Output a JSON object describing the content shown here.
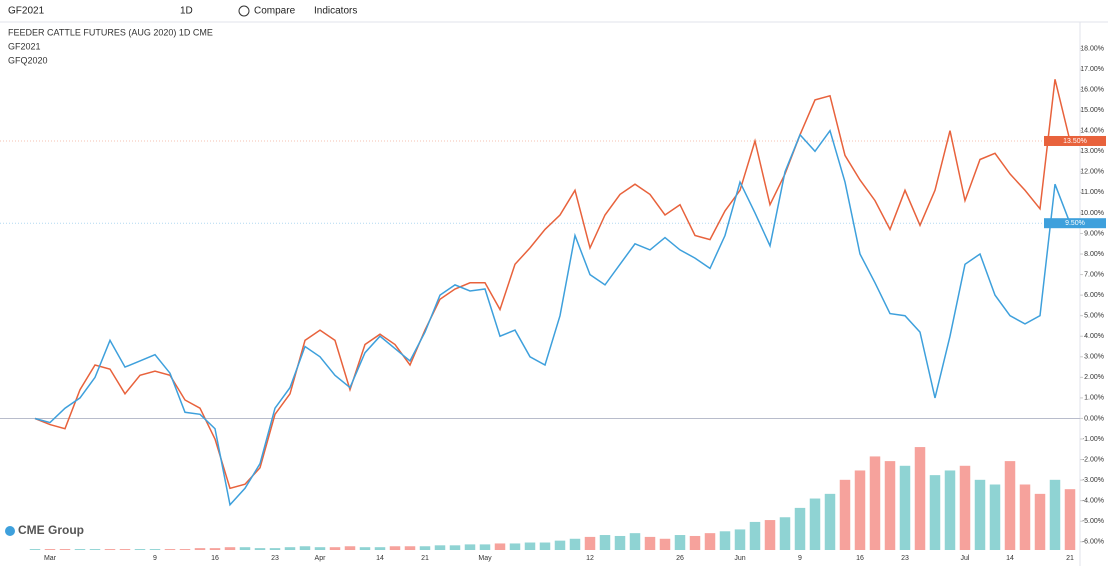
{
  "toolbar": {
    "symbol": "GF2021",
    "interval": "1D",
    "compare": "Compare",
    "indicators": "Indicators"
  },
  "chart_data": {
    "type": "line",
    "title": "FEEDER CATTLE FUTURES (AUG 2020) 1D CME",
    "brand": "CME Group",
    "categories": [
      null,
      "Mar",
      null,
      null,
      null,
      null,
      null,
      null,
      "9",
      null,
      null,
      null,
      "16",
      null,
      null,
      null,
      "23",
      null,
      null,
      "Apr",
      null,
      null,
      null,
      "14",
      null,
      null,
      "21",
      null,
      null,
      null,
      "May",
      null,
      null,
      null,
      null,
      null,
      null,
      "12",
      null,
      null,
      null,
      null,
      null,
      "26",
      null,
      null,
      null,
      "Jun",
      null,
      null,
      null,
      "9",
      null,
      null,
      null,
      "16",
      null,
      null,
      "23",
      null,
      null,
      null,
      "Jul",
      null,
      null,
      "14",
      null,
      null,
      null,
      "21"
    ],
    "series": [
      {
        "name": "GF2021",
        "color": "#e8623c",
        "last_label": "13.50%",
        "values": [
          0,
          -0.3,
          -0.5,
          1.4,
          2.6,
          2.4,
          1.2,
          2.1,
          2.3,
          2.1,
          0.9,
          0.5,
          -1,
          -3.4,
          -3.2,
          -2.4,
          0.2,
          1.2,
          3.8,
          4.3,
          3.8,
          1.4,
          3.6,
          4.1,
          3.6,
          2.6,
          4.3,
          5.8,
          6.3,
          6.6,
          6.6,
          5.3,
          7.5,
          8.3,
          9.2,
          9.9,
          11.1,
          8.3,
          9.9,
          10.9,
          11.4,
          10.9,
          9.9,
          10.4,
          8.9,
          8.7,
          10.1,
          11.1,
          13.5,
          10.4,
          11.9,
          13.8,
          15.5,
          15.7,
          12.8,
          11.6,
          10.6,
          9.2,
          11.1,
          9.4,
          11.1,
          14.0,
          10.6,
          12.6,
          12.9,
          11.9,
          11.1,
          10.2,
          16.5,
          13.5
        ]
      },
      {
        "name": "GFQ2020",
        "color": "#3ea0dc",
        "last_label": "9.50%",
        "values": [
          0,
          -0.2,
          0.5,
          1.0,
          2.0,
          3.8,
          2.5,
          2.8,
          3.1,
          2.2,
          0.3,
          0.2,
          -0.5,
          -4.2,
          -3.4,
          -2.2,
          0.5,
          1.5,
          3.5,
          3.0,
          2.1,
          1.5,
          3.2,
          4.0,
          3.4,
          2.8,
          4.2,
          6.0,
          6.5,
          6.2,
          6.3,
          4.0,
          4.3,
          3.0,
          2.6,
          5.0,
          8.9,
          7.0,
          6.5,
          7.5,
          8.5,
          8.2,
          8.8,
          8.2,
          7.8,
          7.3,
          8.9,
          11.5,
          10.0,
          8.4,
          12.0,
          13.8,
          13.0,
          14.0,
          11.5,
          8.0,
          6.6,
          5.1,
          5.0,
          4.2,
          1.0,
          4.0,
          7.5,
          8.0,
          6.0,
          5.0,
          4.6,
          5.0,
          11.4,
          9.5
        ]
      }
    ],
    "volume": {
      "up_color": "#8fd3d3",
      "down_color": "#f6a29c",
      "ylim": [
        0,
        140
      ],
      "values": [
        1,
        1,
        1,
        1,
        1,
        1,
        1,
        1,
        1,
        1,
        1,
        2,
        2,
        3,
        3,
        2,
        2,
        3,
        4,
        3,
        3,
        4,
        3,
        3,
        4,
        4,
        4,
        5,
        5,
        6,
        6,
        7,
        7,
        8,
        8,
        10,
        12,
        14,
        16,
        15,
        18,
        14,
        12,
        16,
        15,
        18,
        20,
        22,
        30,
        32,
        35,
        45,
        55,
        60,
        75,
        85,
        100,
        95,
        90,
        110,
        80,
        85,
        90,
        75,
        70,
        95,
        70,
        60,
        75,
        65
      ]
    },
    "ylim": [
      -6.4,
      18.9
    ],
    "yticks": [
      {
        "value": -6,
        "label": "-6.00%"
      },
      {
        "value": -5,
        "label": "-5.00%"
      },
      {
        "value": -4,
        "label": "-4.00%"
      },
      {
        "value": -3,
        "label": "-3.00%"
      },
      {
        "value": -2,
        "label": "-2.00%"
      },
      {
        "value": -1,
        "label": "-1.00%"
      },
      {
        "value": 0,
        "label": "0.00%"
      },
      {
        "value": 1,
        "label": "1.00%"
      },
      {
        "value": 2,
        "label": "2.00%"
      },
      {
        "value": 3,
        "label": "3.00%"
      },
      {
        "value": 4,
        "label": "4.00%"
      },
      {
        "value": 5,
        "label": "5.00%"
      },
      {
        "value": 6,
        "label": "6.00%"
      },
      {
        "value": 7,
        "label": "7.00%"
      },
      {
        "value": 8,
        "label": "8.00%"
      },
      {
        "value": 9,
        "label": "9.00%"
      },
      {
        "value": 10,
        "label": "10.00%"
      },
      {
        "value": 11,
        "label": "11.00%"
      },
      {
        "value": 12,
        "label": "12.00%"
      },
      {
        "value": 13,
        "label": "13.00%"
      },
      {
        "value": 14,
        "label": "14.00%"
      },
      {
        "value": 15,
        "label": "15.00%"
      },
      {
        "value": 16,
        "label": "16.00%"
      },
      {
        "value": 17,
        "label": "17.00%"
      },
      {
        "value": 18,
        "label": "18.00%"
      }
    ]
  }
}
